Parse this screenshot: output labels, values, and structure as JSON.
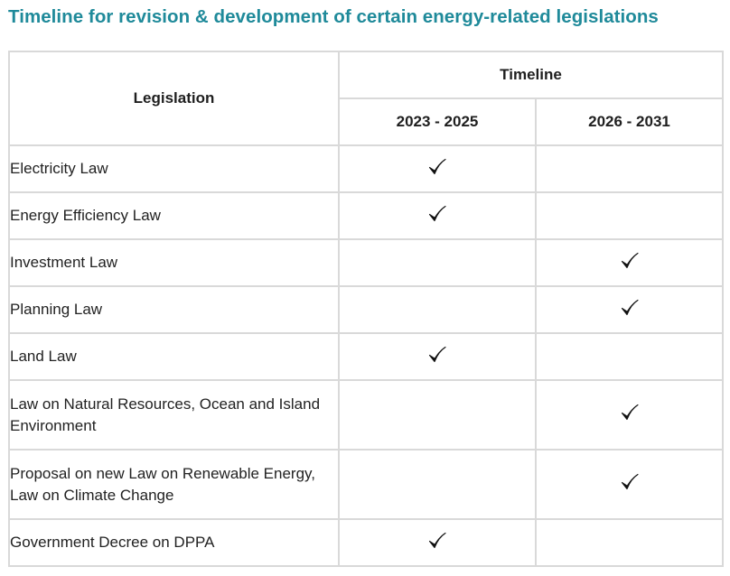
{
  "title": "Timeline for revision & development of certain energy-related legislations",
  "table": {
    "legislation_header": "Legislation",
    "timeline_header": "Timeline",
    "periods": [
      "2023 - 2025",
      "2026 - 2031"
    ],
    "rows": [
      {
        "name": "Electricity Law",
        "period": "2023 - 2025"
      },
      {
        "name": "Energy Efficiency Law",
        "period": "2023 - 2025"
      },
      {
        "name": "Investment Law",
        "period": "2026 - 2031"
      },
      {
        "name": "Planning Law",
        "period": "2026 - 2031"
      },
      {
        "name": "Land Law",
        "period": "2023 - 2025"
      },
      {
        "name": "Law on Natural Resources, Ocean and Island Environment",
        "period": "2026 - 2031"
      },
      {
        "name": "Proposal on new Law on Renewable Energy, Law on Climate Change",
        "period": "2026 - 2031"
      },
      {
        "name": "Government Decree on DPPA",
        "period": "2023 - 2025"
      }
    ]
  },
  "icons": {
    "mark": "checkmark-icon"
  },
  "colors": {
    "title": "#1f8a9a",
    "border": "#d9d9d9",
    "text": "#1f1f1f"
  }
}
